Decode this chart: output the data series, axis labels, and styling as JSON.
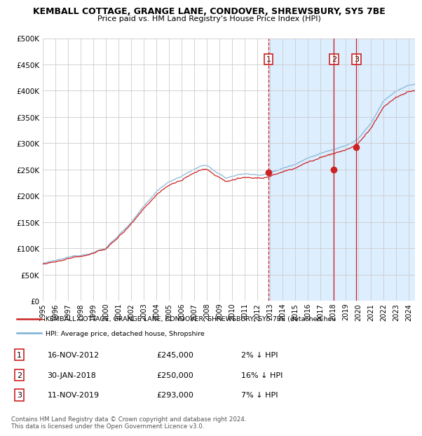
{
  "title": "KEMBALL COTTAGE, GRANGE LANE, CONDOVER, SHREWSBURY, SY5 7BE",
  "subtitle": "Price paid vs. HM Land Registry's House Price Index (HPI)",
  "ylim": [
    0,
    500000
  ],
  "yticks": [
    0,
    50000,
    100000,
    150000,
    200000,
    250000,
    300000,
    350000,
    400000,
    450000,
    500000
  ],
  "ytick_labels": [
    "£0",
    "£50K",
    "£100K",
    "£150K",
    "£200K",
    "£250K",
    "£300K",
    "£350K",
    "£400K",
    "£450K",
    "£500K"
  ],
  "xlim_start": 1995.5,
  "xlim_end": 2024.5,
  "hpi_color": "#7ab0d4",
  "price_color": "#cc2222",
  "grid_color": "#cccccc",
  "background_color": "#ffffff",
  "highlight_color": "#ddeeff",
  "transactions": [
    {
      "label": "1",
      "date_num": 2012.88,
      "price": 245000,
      "vline_style": "dashed"
    },
    {
      "label": "2",
      "date_num": 2018.08,
      "price": 250000,
      "vline_style": "solid"
    },
    {
      "label": "3",
      "date_num": 2019.86,
      "price": 293000,
      "vline_style": "solid"
    }
  ],
  "legend_property_text": "KEMBALL COTTAGE, GRANGE LANE, CONDOVER, SHREWSBURY, SY5 7BE (detached hou",
  "legend_hpi_text": "HPI: Average price, detached house, Shropshire",
  "table_rows": [
    {
      "num": "1",
      "date": "16-NOV-2012",
      "price": "£245,000",
      "pct": "2% ↓ HPI"
    },
    {
      "num": "2",
      "date": "30-JAN-2018",
      "price": "£250,000",
      "pct": "16% ↓ HPI"
    },
    {
      "num": "3",
      "date": "11-NOV-2019",
      "price": "£293,000",
      "pct": "7% ↓ HPI"
    }
  ],
  "footer": "Contains HM Land Registry data © Crown copyright and database right 2024.\nThis data is licensed under the Open Government Licence v3.0."
}
